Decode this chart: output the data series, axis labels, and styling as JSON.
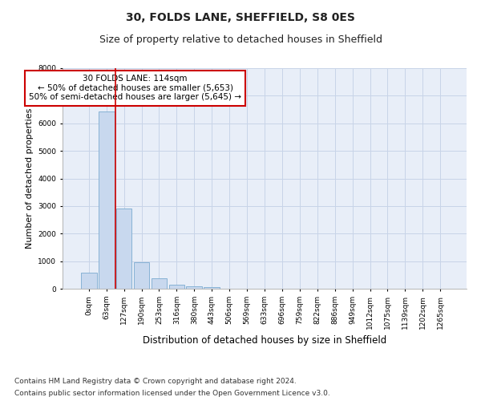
{
  "title": "30, FOLDS LANE, SHEFFIELD, S8 0ES",
  "subtitle": "Size of property relative to detached houses in Sheffield",
  "xlabel": "Distribution of detached houses by size in Sheffield",
  "ylabel": "Number of detached properties",
  "categories": [
    "0sqm",
    "63sqm",
    "127sqm",
    "190sqm",
    "253sqm",
    "316sqm",
    "380sqm",
    "443sqm",
    "506sqm",
    "569sqm",
    "633sqm",
    "696sqm",
    "759sqm",
    "822sqm",
    "886sqm",
    "949sqm",
    "1012sqm",
    "1075sqm",
    "1139sqm",
    "1202sqm",
    "1265sqm"
  ],
  "values": [
    570,
    6420,
    2920,
    970,
    370,
    160,
    90,
    55,
    0,
    0,
    0,
    0,
    0,
    0,
    0,
    0,
    0,
    0,
    0,
    0,
    0
  ],
  "bar_color": "#c8d8ee",
  "bar_edge_color": "#7aaad0",
  "vline_color": "#cc0000",
  "vline_x": 2,
  "annotation_text": "30 FOLDS LANE: 114sqm\n← 50% of detached houses are smaller (5,653)\n50% of semi-detached houses are larger (5,645) →",
  "annotation_box_facecolor": "#ffffff",
  "annotation_box_edgecolor": "#cc0000",
  "ylim": [
    0,
    8000
  ],
  "yticks": [
    0,
    1000,
    2000,
    3000,
    4000,
    5000,
    6000,
    7000,
    8000
  ],
  "grid_color": "#c8d4e8",
  "background_color": "#e8eef8",
  "footer_line1": "Contains HM Land Registry data © Crown copyright and database right 2024.",
  "footer_line2": "Contains public sector information licensed under the Open Government Licence v3.0.",
  "title_fontsize": 10,
  "subtitle_fontsize": 9,
  "ylabel_fontsize": 8,
  "xlabel_fontsize": 8.5,
  "tick_fontsize": 6.5,
  "annotation_fontsize": 7.5,
  "footer_fontsize": 6.5
}
